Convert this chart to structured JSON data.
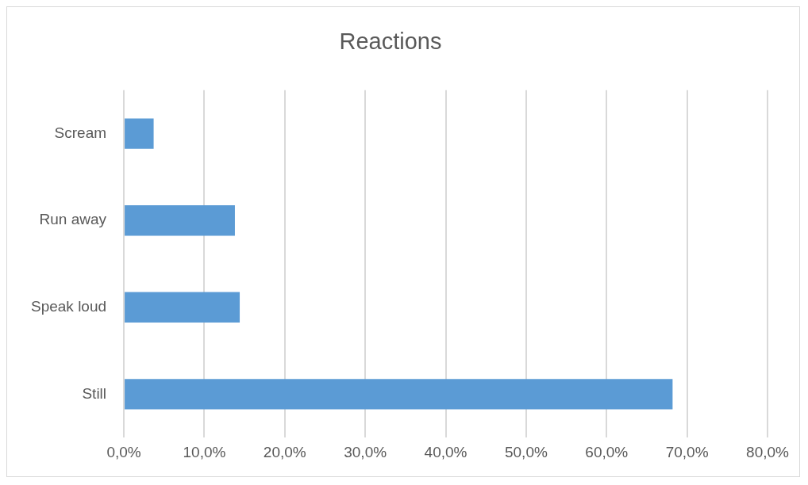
{
  "chart_data": {
    "type": "bar",
    "orientation": "horizontal",
    "title": "Reactions",
    "categories": [
      "Scream",
      "Run away",
      "Speak loud",
      "Still"
    ],
    "values": [
      3.7,
      13.8,
      14.4,
      68.2
    ],
    "color": "#5b9bd5",
    "xlim": [
      0,
      80
    ],
    "xticks": [
      {
        "value": 0,
        "label": "0,0%"
      },
      {
        "value": 10,
        "label": "10,0%"
      },
      {
        "value": 20,
        "label": "20,0%"
      },
      {
        "value": 30,
        "label": "30,0%"
      },
      {
        "value": 40,
        "label": "40,0%"
      },
      {
        "value": 50,
        "label": "50,0%"
      },
      {
        "value": 60,
        "label": "60,0%"
      },
      {
        "value": 70,
        "label": "70,0%"
      },
      {
        "value": 80,
        "label": "80,0%"
      }
    ],
    "grid": "x",
    "legend": false
  }
}
